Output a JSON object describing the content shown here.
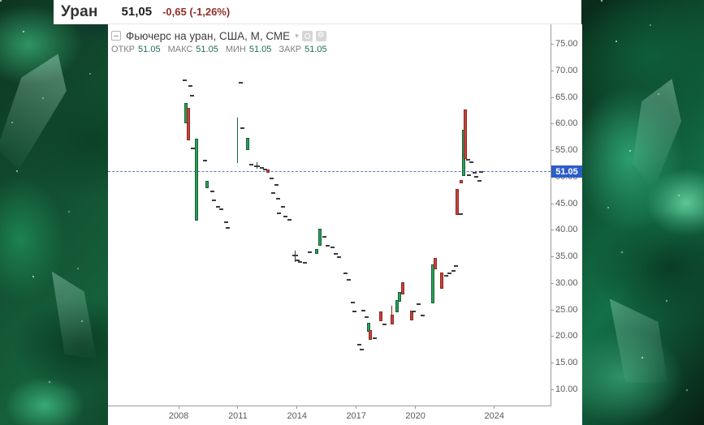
{
  "header": {
    "symbol": "Уран",
    "price": "51,05",
    "change": "-0,65 (-1,26%)"
  },
  "chart": {
    "title": "Фьючерс на уран, США, М, СМЕ",
    "collapse_glyph": "−",
    "caret_glyph": "▾",
    "legend": {
      "open_label": "ОТКР",
      "open": "51.05",
      "high_label": "МАКС",
      "high": "51.05",
      "low_label": "МИН",
      "low": "51.05",
      "close_label": "ЗАКР",
      "close": "51.05"
    }
  },
  "chart_data": {
    "type": "candlestick",
    "title": "Фьючерс на уран, США, М, СМЕ",
    "timeframe_note": "monthly bars, x = decimal year",
    "y_axis": {
      "min": 10,
      "max": 75,
      "step": 5,
      "format_decimals": 2
    },
    "x_ticks": [
      2008,
      2011,
      2014,
      2017,
      2020,
      2024
    ],
    "current_price": 51.05,
    "current_price_label": "51.05",
    "marks": [
      {
        "x": 2008.29,
        "k": "d",
        "v": 68.2
      },
      {
        "x": 2008.39,
        "k": "c",
        "dir": "up",
        "o": 60.1,
        "c": 63.9
      },
      {
        "x": 2008.49,
        "k": "c",
        "dir": "dn",
        "o": 63.0,
        "c": 56.9
      },
      {
        "x": 2008.58,
        "k": "d",
        "v": 67.2
      },
      {
        "x": 2008.66,
        "k": "d",
        "v": 65.3
      },
      {
        "x": 2008.7,
        "k": "d",
        "v": 55.4
      },
      {
        "x": 2008.91,
        "k": "c",
        "dir": "up",
        "o": 41.8,
        "c": 57.2
      },
      {
        "x": 2009.32,
        "k": "d",
        "v": 53.1
      },
      {
        "x": 2009.44,
        "k": "c",
        "dir": "up",
        "o": 47.9,
        "c": 49.3
      },
      {
        "x": 2009.69,
        "k": "d",
        "v": 47.3
      },
      {
        "x": 2009.81,
        "k": "d",
        "v": 45.6
      },
      {
        "x": 2009.98,
        "k": "d",
        "v": 44.4
      },
      {
        "x": 2010.18,
        "k": "d",
        "v": 44.0
      },
      {
        "x": 2010.39,
        "k": "d",
        "v": 41.5
      },
      {
        "x": 2010.51,
        "k": "d",
        "v": 40.5
      },
      {
        "x": 2011.0,
        "k": "r",
        "h": 61.2,
        "l": 52.7
      },
      {
        "x": 2011.13,
        "k": "d",
        "v": 67.8
      },
      {
        "x": 2011.25,
        "k": "d",
        "v": 59.2
      },
      {
        "x": 2011.48,
        "k": "c",
        "dir": "up",
        "o": 55.1,
        "c": 57.4
      },
      {
        "x": 2011.7,
        "k": "d",
        "v": 52.3
      },
      {
        "x": 2011.99,
        "k": "x",
        "h": 52.8,
        "l": 51.6,
        "v": 52.0
      },
      {
        "x": 2012.2,
        "k": "d",
        "v": 51.7
      },
      {
        "x": 2012.4,
        "k": "d",
        "v": 51.4
      },
      {
        "x": 2012.53,
        "k": "c",
        "dir": "dn",
        "o": 51.4,
        "c": 50.8
      },
      {
        "x": 2012.73,
        "k": "d",
        "v": 49.8
      },
      {
        "x": 2012.81,
        "k": "d",
        "v": 47.0
      },
      {
        "x": 2012.94,
        "k": "d",
        "v": 48.5
      },
      {
        "x": 2013.06,
        "k": "d",
        "v": 45.9
      },
      {
        "x": 2013.1,
        "k": "d",
        "v": 43.2
      },
      {
        "x": 2013.27,
        "k": "d",
        "v": 44.4
      },
      {
        "x": 2013.43,
        "k": "d",
        "v": 42.6
      },
      {
        "x": 2013.6,
        "k": "d",
        "v": 41.9
      },
      {
        "x": 2013.89,
        "k": "x",
        "h": 36.2,
        "l": 34.0,
        "v": 35.2
      },
      {
        "x": 2014.01,
        "k": "d",
        "v": 34.3
      },
      {
        "x": 2014.17,
        "k": "d",
        "v": 34.0
      },
      {
        "x": 2014.38,
        "k": "d",
        "v": 33.9
      },
      {
        "x": 2014.63,
        "k": "d",
        "v": 35.9
      },
      {
        "x": 2015.0,
        "k": "c",
        "dir": "up",
        "o": 35.6,
        "c": 36.5
      },
      {
        "x": 2015.16,
        "k": "c",
        "dir": "up",
        "o": 37.1,
        "c": 40.3
      },
      {
        "x": 2015.37,
        "k": "d",
        "v": 38.8
      },
      {
        "x": 2015.57,
        "k": "d",
        "v": 37.1
      },
      {
        "x": 2015.78,
        "k": "d",
        "v": 36.8
      },
      {
        "x": 2015.98,
        "k": "d",
        "v": 35.6
      },
      {
        "x": 2016.11,
        "k": "d",
        "v": 35.0
      },
      {
        "x": 2016.44,
        "k": "d",
        "v": 31.9
      },
      {
        "x": 2016.64,
        "k": "d",
        "v": 30.7
      },
      {
        "x": 2016.81,
        "k": "d",
        "v": 26.4
      },
      {
        "x": 2016.93,
        "k": "d",
        "v": 24.7
      },
      {
        "x": 2017.14,
        "k": "d",
        "v": 18.5
      },
      {
        "x": 2017.26,
        "k": "d",
        "v": 17.5
      },
      {
        "x": 2017.38,
        "k": "d",
        "v": 24.9
      },
      {
        "x": 2017.51,
        "k": "d",
        "v": 23.6
      },
      {
        "x": 2017.63,
        "k": "c",
        "dir": "up",
        "o": 20.9,
        "c": 22.6
      },
      {
        "x": 2017.7,
        "k": "c",
        "dir": "dn",
        "o": 21.2,
        "c": 19.4
      },
      {
        "x": 2017.92,
        "k": "d",
        "v": 19.7
      },
      {
        "x": 2018.25,
        "k": "c",
        "dir": "dn",
        "o": 24.7,
        "c": 22.9
      },
      {
        "x": 2018.45,
        "k": "d",
        "v": 22.3
      },
      {
        "x": 2018.82,
        "k": "c",
        "dir": "dn",
        "o": 24.1,
        "c": 22.3,
        "h": 25.8
      },
      {
        "x": 2019.07,
        "k": "c",
        "dir": "up",
        "o": 24.5,
        "c": 26.8
      },
      {
        "x": 2019.19,
        "k": "c",
        "dir": "up",
        "o": 26.5,
        "c": 28.4
      },
      {
        "x": 2019.36,
        "k": "c",
        "dir": "dn",
        "o": 30.2,
        "c": 27.9
      },
      {
        "x": 2019.81,
        "k": "c",
        "dir": "dn",
        "o": 24.8,
        "c": 23.0
      },
      {
        "x": 2019.93,
        "k": "d",
        "v": 24.7
      },
      {
        "x": 2020.18,
        "k": "d",
        "v": 26.1
      },
      {
        "x": 2020.35,
        "k": "d",
        "v": 24.0
      },
      {
        "x": 2020.88,
        "k": "c",
        "dir": "up",
        "o": 26.3,
        "c": 33.6
      },
      {
        "x": 2021.0,
        "k": "c",
        "dir": "dn",
        "o": 34.8,
        "c": 32.7
      },
      {
        "x": 2021.33,
        "k": "c",
        "dir": "dn",
        "o": 32.1,
        "c": 29.0
      },
      {
        "x": 2021.58,
        "k": "d",
        "v": 31.4
      },
      {
        "x": 2021.74,
        "k": "d",
        "v": 31.9
      },
      {
        "x": 2021.91,
        "k": "d",
        "v": 32.3
      },
      {
        "x": 2022.07,
        "k": "d",
        "v": 33.2
      },
      {
        "x": 2022.13,
        "k": "c",
        "dir": "dn",
        "o": 47.8,
        "c": 42.9
      },
      {
        "x": 2022.28,
        "k": "d",
        "v": 43.0
      },
      {
        "x": 2022.34,
        "k": "c",
        "dir": "dn",
        "o": 49.4,
        "c": 48.8
      },
      {
        "x": 2022.44,
        "k": "c",
        "dir": "up",
        "o": 50.2,
        "c": 58.9
      },
      {
        "x": 2022.54,
        "k": "c",
        "dir": "dn",
        "o": 62.7,
        "c": 53.4
      },
      {
        "x": 2022.69,
        "k": "d",
        "v": 53.3
      },
      {
        "x": 2022.73,
        "k": "d",
        "v": 50.4
      },
      {
        "x": 2022.85,
        "k": "d",
        "v": 52.8
      },
      {
        "x": 2022.98,
        "k": "d",
        "v": 50.8
      },
      {
        "x": 2023.1,
        "k": "d",
        "v": 50.1
      },
      {
        "x": 2023.23,
        "k": "d",
        "v": 49.3
      },
      {
        "x": 2023.31,
        "k": "d",
        "v": 51.05
      }
    ]
  },
  "colors": {
    "up_fill": "#2f9e57",
    "up_border": "#156138",
    "down_fill": "#c1473d",
    "down_border": "#8b2721",
    "dash": "#3b3b3b",
    "price_line": "#5b79c2",
    "price_tag": "#2d5dc8"
  }
}
